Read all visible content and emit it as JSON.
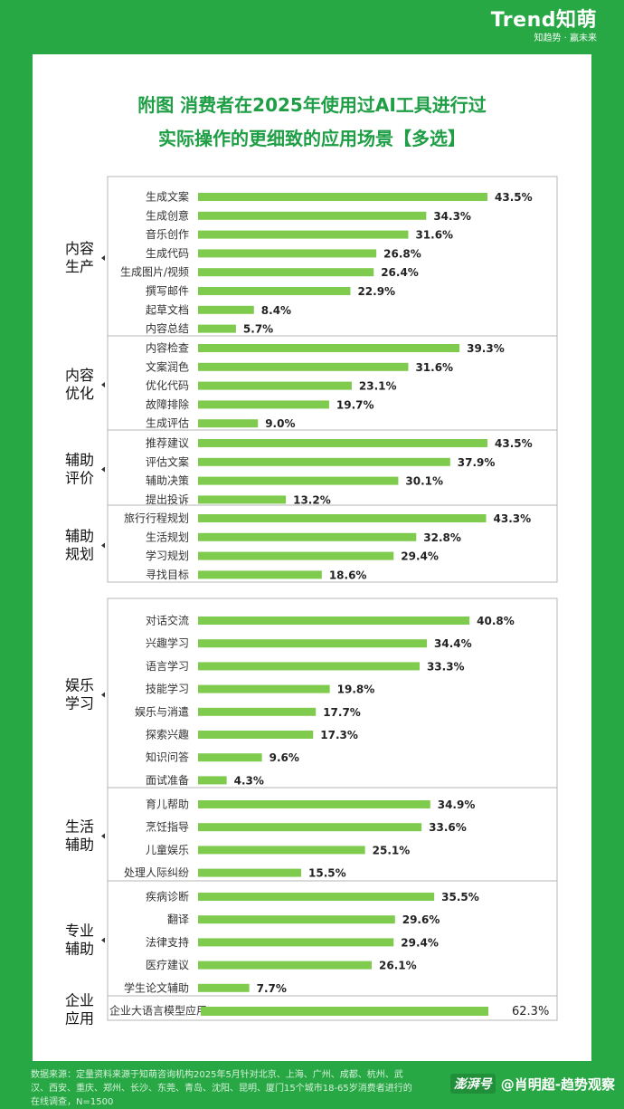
{
  "brand": {
    "logo": "Trend知萌",
    "slogan": "知趋势 · 赢未来"
  },
  "title": {
    "line1": "附图  消费者在2025年使用过AI工具进行过",
    "line2": "实际操作的更细致的应用场景【多选】"
  },
  "chart_data": {
    "type": "bar",
    "orientation": "horizontal",
    "unit": "%",
    "value_scale_max": 62.3,
    "groups": [
      {
        "name": "内容生产",
        "items": [
          {
            "label": "生成文案",
            "value": 43.5
          },
          {
            "label": "生成创意",
            "value": 34.3
          },
          {
            "label": "音乐创作",
            "value": 31.6
          },
          {
            "label": "生成代码",
            "value": 26.8
          },
          {
            "label": "生成图片/视频",
            "value": 26.4
          },
          {
            "label": "撰写邮件",
            "value": 22.9
          },
          {
            "label": "起草文档",
            "value": 8.4
          },
          {
            "label": "内容总结",
            "value": 5.7
          }
        ]
      },
      {
        "name": "内容优化",
        "items": [
          {
            "label": "内容检查",
            "value": 39.3
          },
          {
            "label": "文案润色",
            "value": 31.6
          },
          {
            "label": "优化代码",
            "value": 23.1
          },
          {
            "label": "故障排除",
            "value": 19.7
          },
          {
            "label": "生成评估",
            "value": 9.0
          }
        ]
      },
      {
        "name": "辅助评价",
        "items": [
          {
            "label": "推荐建议",
            "value": 43.5
          },
          {
            "label": "评估文案",
            "value": 37.9
          },
          {
            "label": "辅助决策",
            "value": 30.1
          },
          {
            "label": "提出投诉",
            "value": 13.2
          }
        ]
      },
      {
        "name": "辅助规划",
        "items": [
          {
            "label": "旅行行程规划",
            "value": 43.3
          },
          {
            "label": "生活规划",
            "value": 32.8
          },
          {
            "label": "学习规划",
            "value": 29.4
          },
          {
            "label": "寻找目标",
            "value": 18.6
          }
        ]
      },
      {
        "name": "娱乐学习",
        "items": [
          {
            "label": "对话交流",
            "value": 40.8
          },
          {
            "label": "兴趣学习",
            "value": 34.4
          },
          {
            "label": "语言学习",
            "value": 33.3
          },
          {
            "label": "技能学习",
            "value": 19.8
          },
          {
            "label": "娱乐与消遣",
            "value": 17.7
          },
          {
            "label": "探索兴趣",
            "value": 17.3
          },
          {
            "label": "知识问答",
            "value": 9.6
          },
          {
            "label": "面试准备",
            "value": 4.3
          }
        ]
      },
      {
        "name": "生活辅助",
        "items": [
          {
            "label": "育儿帮助",
            "value": 34.9
          },
          {
            "label": "烹饪指导",
            "value": 33.6
          },
          {
            "label": "儿童娱乐",
            "value": 25.1
          },
          {
            "label": "处理人际纠纷",
            "value": 15.5
          }
        ]
      },
      {
        "name": "专业辅助",
        "items": [
          {
            "label": "疾病诊断",
            "value": 35.5
          },
          {
            "label": "翻译",
            "value": 29.6
          },
          {
            "label": "法律支持",
            "value": 29.4
          },
          {
            "label": "医疗建议",
            "value": 26.1
          },
          {
            "label": "学生论文辅助",
            "value": 7.7
          }
        ]
      },
      {
        "name": "企业应用",
        "items": [
          {
            "label": "企业大语言模型应用",
            "value": 62.3
          }
        ]
      }
    ]
  },
  "colors": {
    "background": "#27a844",
    "bar": "#7fcb4e",
    "title": "#1e9e45",
    "box_border": "#b5b5b5"
  },
  "footer": {
    "source": "数据来源：定量资料来源于知萌咨询机构2025年5月针对北京、上海、广州、成都、杭州、武汉、西安、重庆、郑州、长沙、东莞、青岛、沈阳、昆明、厦门15个城市18-65岁消费者进行的在线调查，N=1500"
  },
  "watermark": {
    "logo": "澎湃号",
    "text": "@肖明超-趋势观察"
  }
}
